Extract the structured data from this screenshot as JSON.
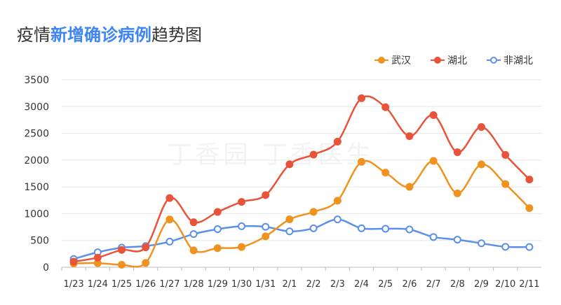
{
  "title": {
    "prefix": "疫情",
    "highlight": "新增确诊病例",
    "suffix": "趋势图"
  },
  "watermark": "丁香园 丁香医生",
  "chart_data": {
    "type": "line",
    "title": "疫情新增确诊病例趋势图",
    "categories": [
      "1/23",
      "1/24",
      "1/25",
      "1/26",
      "1/27",
      "1/28",
      "1/29",
      "1/30",
      "1/31",
      "2/1",
      "2/2",
      "2/3",
      "2/4",
      "2/5",
      "2/6",
      "2/7",
      "2/8",
      "2/9",
      "2/10",
      "2/11"
    ],
    "ylim": [
      0,
      3500
    ],
    "yticks": [
      0,
      500,
      1000,
      1500,
      2000,
      2500,
      3000,
      3500
    ],
    "grid": true,
    "legend_position": "top-right",
    "xlabel": "",
    "ylabel": "",
    "series": [
      {
        "name": "武汉",
        "color": "#f0921e",
        "fill": "#f0921e",
        "values": [
          70,
          77,
          46,
          80,
          892,
          315,
          356,
          378,
          576,
          894,
          1033,
          1242,
          1967,
          1766,
          1501,
          1985,
          1379,
          1920,
          1552,
          1104
        ]
      },
      {
        "name": "湖北",
        "color": "#e8533a",
        "fill": "#e8533a",
        "values": [
          105,
          180,
          323,
          371,
          1291,
          840,
          1032,
          1220,
          1347,
          1921,
          2103,
          2345,
          3156,
          2987,
          2447,
          2841,
          2147,
          2618,
          2097,
          1638
        ]
      },
      {
        "name": "非湖北",
        "color": "#5b8fe8",
        "fill": "#ffffff",
        "values": [
          154,
          279,
          365,
          395,
          478,
          619,
          711,
          765,
          755,
          669,
          727,
          893,
          727,
          719,
          705,
          564,
          515,
          447,
          381,
          377
        ]
      }
    ]
  }
}
